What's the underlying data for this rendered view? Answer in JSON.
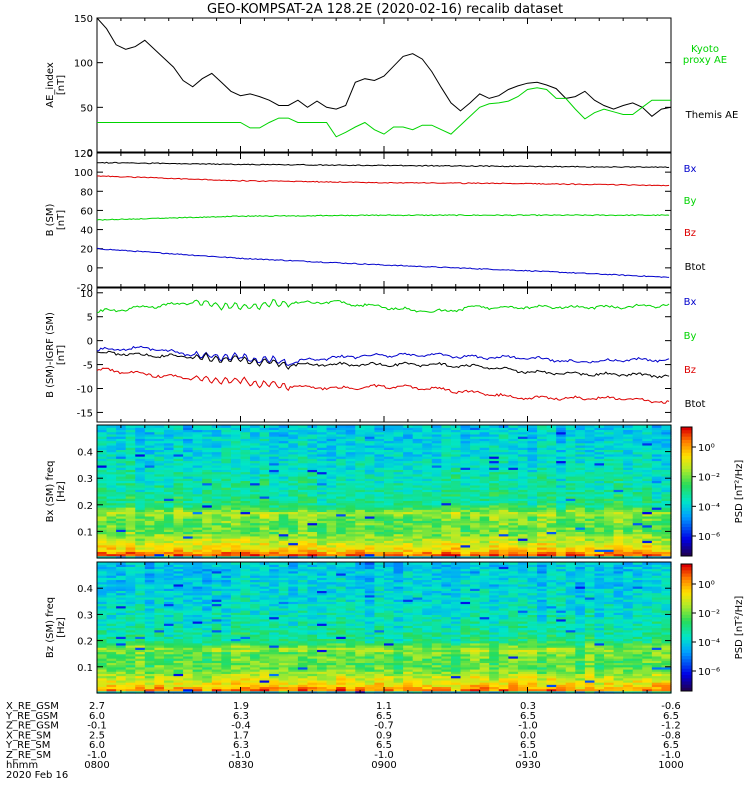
{
  "title": "GEO-KOMPSAT-2A 128.2E (2020-02-16) recalib dataset",
  "time_axis": {
    "date_label": "2020 Feb 16",
    "rows": [
      {
        "label": "X_RE_GSM",
        "values": [
          "2.7",
          "1.9",
          "1.1",
          "0.3",
          "-0.6"
        ]
      },
      {
        "label": "Y_RE_GSM",
        "values": [
          "6.0",
          "6.3",
          "6.5",
          "6.5",
          "6.5"
        ]
      },
      {
        "label": "Z_RE_GSM",
        "values": [
          "-0.1",
          "-0.4",
          "-0.7",
          "-1.0",
          "-1.2"
        ]
      },
      {
        "label": "X_RE_SM",
        "values": [
          "2.5",
          "1.7",
          "0.9",
          "0.0",
          "-0.8"
        ]
      },
      {
        "label": "Y_RE_SM",
        "values": [
          "6.0",
          "6.3",
          "6.5",
          "6.5",
          "6.5"
        ]
      },
      {
        "label": "Z_RE_SM",
        "values": [
          "-1.0",
          "-1.0",
          "-1.0",
          "-1.0",
          "-1.0"
        ]
      },
      {
        "label": "hhmm",
        "values": [
          "0800",
          "0830",
          "0900",
          "0930",
          "1000"
        ]
      }
    ]
  },
  "colors": {
    "black": "#000000",
    "green": "#00d400",
    "red": "#dd0000",
    "blue": "#0000cc"
  },
  "chart_data": [
    {
      "type": "line",
      "ylabel": "AE_index [nT]",
      "ylim": [
        0,
        150
      ],
      "yticks": [
        0,
        50,
        100,
        150
      ],
      "xlim_minutes_after_0800": [
        0,
        120
      ],
      "series": [
        {
          "name": "Themis AE",
          "color": "black",
          "x": [
            0,
            2,
            4,
            6,
            8,
            10,
            13,
            16,
            18,
            20,
            22,
            24,
            26,
            28,
            30,
            32,
            34,
            36,
            38,
            40,
            42,
            44,
            46,
            48,
            50,
            52,
            54,
            56,
            58,
            60,
            62,
            64,
            66,
            68,
            70,
            72,
            74,
            76,
            78,
            80,
            82,
            84,
            86,
            88,
            90,
            92,
            94,
            96,
            98,
            100,
            102,
            104,
            106,
            108,
            110,
            112,
            114,
            116,
            118,
            120
          ],
          "y": [
            150,
            138,
            120,
            115,
            118,
            125,
            110,
            95,
            80,
            73,
            82,
            88,
            78,
            68,
            63,
            65,
            62,
            58,
            52,
            52,
            58,
            50,
            57,
            50,
            48,
            52,
            78,
            82,
            80,
            85,
            96,
            107,
            110,
            104,
            90,
            72,
            55,
            46,
            55,
            65,
            60,
            63,
            70,
            74,
            77,
            78,
            75,
            71,
            60,
            62,
            68,
            58,
            52,
            48,
            52,
            55,
            50,
            40,
            48,
            50
          ]
        },
        {
          "name": "Kyoto proxy AE",
          "color": "green",
          "x": [
            0,
            5,
            10,
            15,
            20,
            25,
            28,
            30,
            32,
            34,
            36,
            38,
            40,
            42,
            44,
            46,
            48,
            50,
            52,
            54,
            56,
            58,
            60,
            62,
            64,
            66,
            68,
            70,
            72,
            74,
            76,
            78,
            80,
            82,
            84,
            86,
            88,
            90,
            92,
            94,
            96,
            98,
            100,
            102,
            104,
            106,
            108,
            110,
            112,
            114,
            116,
            118,
            120
          ],
          "y": [
            33,
            33,
            33,
            33,
            33,
            33,
            33,
            33,
            27,
            27,
            33,
            38,
            38,
            33,
            33,
            33,
            33,
            17,
            22,
            28,
            33,
            25,
            20,
            28,
            28,
            25,
            30,
            30,
            25,
            20,
            30,
            40,
            50,
            54,
            55,
            57,
            62,
            70,
            72,
            70,
            60,
            60,
            48,
            37,
            44,
            48,
            45,
            42,
            42,
            50,
            58,
            58,
            58
          ]
        }
      ]
    },
    {
      "type": "line",
      "ylabel": "B (SM) [nT]",
      "ylim": [
        -20,
        120
      ],
      "yticks": [
        -20,
        0,
        20,
        40,
        60,
        80,
        100,
        120
      ],
      "legend": [
        "Bx",
        "By",
        "Bz",
        "Btot"
      ],
      "series": [
        {
          "name": "Btot",
          "color": "black",
          "x": [
            0,
            30,
            60,
            90,
            120
          ],
          "y": [
            110,
            108,
            107,
            106,
            105
          ]
        },
        {
          "name": "Bz",
          "color": "red",
          "x": [
            0,
            30,
            60,
            90,
            120
          ],
          "y": [
            96,
            91,
            89,
            88,
            86
          ]
        },
        {
          "name": "By",
          "color": "green",
          "x": [
            0,
            30,
            60,
            90,
            120
          ],
          "y": [
            50,
            54,
            55,
            55,
            55
          ]
        },
        {
          "name": "Bx",
          "color": "blue",
          "x": [
            0,
            30,
            60,
            90,
            120
          ],
          "y": [
            20,
            10,
            3,
            -3,
            -10
          ]
        }
      ]
    },
    {
      "type": "line",
      "ylabel": "B (SM)-IGRF (SM) [nT]",
      "ylim": [
        -17,
        11
      ],
      "yticks": [
        -15,
        -10,
        -5,
        0,
        5,
        10
      ],
      "legend": [
        "Bx",
        "By",
        "Bz",
        "Btot"
      ],
      "series": [
        {
          "name": "By",
          "color": "green",
          "x": [
            0,
            10,
            20,
            30,
            40,
            50,
            60,
            70,
            80,
            90,
            100,
            110,
            120
          ],
          "y": [
            6,
            7,
            8,
            7,
            8,
            8,
            7,
            6,
            7,
            7,
            7,
            7,
            7.5
          ]
        },
        {
          "name": "Bx",
          "color": "blue",
          "x": [
            0,
            10,
            20,
            30,
            40,
            50,
            60,
            70,
            80,
            90,
            100,
            110,
            120
          ],
          "y": [
            -2,
            -1.5,
            -3,
            -3.5,
            -4.5,
            -3.5,
            -3,
            -3,
            -3.5,
            -3.5,
            -4.5,
            -4,
            -4
          ]
        },
        {
          "name": "Btot",
          "color": "black",
          "x": [
            0,
            10,
            20,
            30,
            40,
            50,
            60,
            70,
            80,
            90,
            100,
            110,
            120
          ],
          "y": [
            -2.5,
            -3,
            -3.5,
            -4,
            -5,
            -5,
            -5,
            -5,
            -5.5,
            -6.5,
            -7,
            -7,
            -7.5
          ]
        },
        {
          "name": "Bz",
          "color": "red",
          "x": [
            0,
            10,
            20,
            30,
            40,
            50,
            60,
            70,
            80,
            90,
            100,
            110,
            120
          ],
          "y": [
            -6,
            -7,
            -8,
            -8.5,
            -9.5,
            -10,
            -9.5,
            -10,
            -11,
            -12,
            -12,
            -12,
            -13
          ]
        }
      ]
    },
    {
      "type": "heatmap",
      "ylabel": "Bx (SM) freq [Hz]",
      "ylim": [
        0,
        0.5
      ],
      "yticks": [
        0.1,
        0.2,
        0.3,
        0.4
      ],
      "colorbar": {
        "label": "PSD [nT²/Hz]",
        "ticks": [
          "10⁰",
          "10⁻²",
          "10⁻⁴",
          "10⁻⁶"
        ]
      },
      "band_levels": [
        {
          "f": 0.01,
          "level": 0.95
        },
        {
          "f": 0.03,
          "level": 0.8
        },
        {
          "f": 0.06,
          "level": 0.72
        },
        {
          "f": 0.1,
          "level": 0.6
        },
        {
          "f": 0.15,
          "level": 0.62
        },
        {
          "f": 0.17,
          "level": 0.68
        },
        {
          "f": 0.2,
          "level": 0.5
        },
        {
          "f": 0.3,
          "level": 0.45
        },
        {
          "f": 0.4,
          "level": 0.4
        },
        {
          "f": 0.5,
          "level": 0.38
        }
      ]
    },
    {
      "type": "heatmap",
      "ylabel": "Bz (SM) freq [Hz]",
      "ylim": [
        0,
        0.5
      ],
      "yticks": [
        0.1,
        0.2,
        0.3,
        0.4
      ],
      "colorbar": {
        "label": "PSD [nT²/Hz]",
        "ticks": [
          "10⁰",
          "10⁻²",
          "10⁻⁴",
          "10⁻⁶"
        ]
      },
      "band_levels": [
        {
          "f": 0.01,
          "level": 0.9
        },
        {
          "f": 0.03,
          "level": 0.78
        },
        {
          "f": 0.06,
          "level": 0.7
        },
        {
          "f": 0.1,
          "level": 0.58
        },
        {
          "f": 0.15,
          "level": 0.6
        },
        {
          "f": 0.17,
          "level": 0.66
        },
        {
          "f": 0.2,
          "level": 0.48
        },
        {
          "f": 0.3,
          "level": 0.42
        },
        {
          "f": 0.4,
          "level": 0.38
        },
        {
          "f": 0.5,
          "level": 0.36
        }
      ]
    }
  ]
}
